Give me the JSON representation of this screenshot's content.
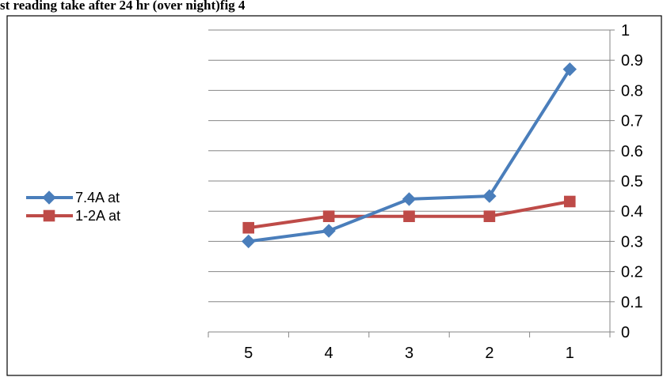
{
  "chart_data": {
    "type": "line",
    "title": "st reading take after 24  hr (over night)fig 4",
    "categories": [
      "5",
      "4",
      "3",
      "2",
      "1"
    ],
    "y_axis_position": "right",
    "ylim": [
      0,
      1
    ],
    "yticks": [
      "0",
      "0.1",
      "0.2",
      "0.3",
      "0.4",
      "0.5",
      "0.6",
      "0.7",
      "0.8",
      "0.9",
      "1"
    ],
    "grid": true,
    "legend_position": "left",
    "series": [
      {
        "name": "7.4A at",
        "values": [
          0.3,
          0.335,
          0.44,
          0.45,
          0.87
        ],
        "color": "#4a7ebb",
        "marker": "diamond"
      },
      {
        "name": "1-2A at",
        "values": [
          0.345,
          0.383,
          0.383,
          0.383,
          0.432
        ],
        "color": "#be4b48",
        "marker": "square"
      }
    ]
  }
}
